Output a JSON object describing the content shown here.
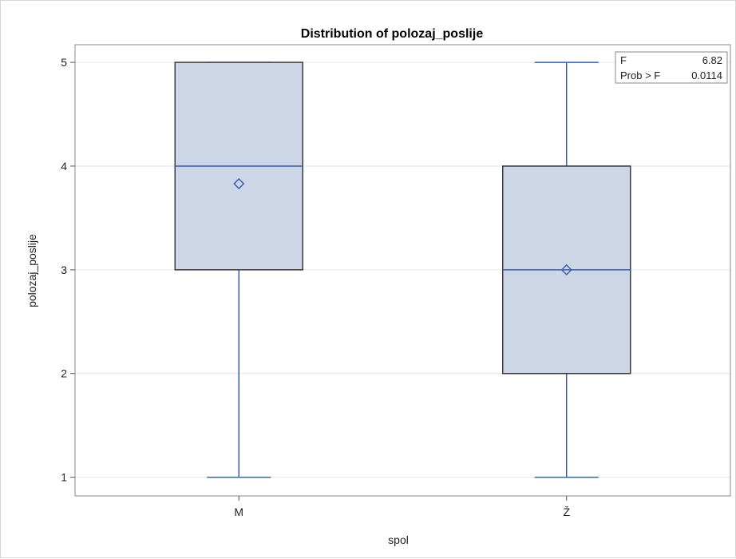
{
  "chart_data": {
    "type": "box",
    "title": "Distribution of polozaj_poslije",
    "xlabel": "spol",
    "ylabel": "polozaj_poslije",
    "categories": [
      "M",
      "Ž"
    ],
    "ylim": [
      0.82,
      5.17
    ],
    "yticks": [
      1,
      2,
      3,
      4,
      5
    ],
    "grid": true,
    "boxes": [
      {
        "category": "M",
        "min": 1,
        "q1": 3,
        "median": 4,
        "q3": 5,
        "max": 5,
        "mean": 3.83
      },
      {
        "category": "Ž",
        "min": 1,
        "q1": 2,
        "median": 3,
        "q3": 4,
        "max": 5,
        "mean": 3.0
      }
    ],
    "inset": {
      "rows": [
        {
          "label": "F",
          "value": "6.82"
        },
        {
          "label": "Prob > F",
          "value": "0.0114"
        }
      ],
      "placement": "top-right"
    },
    "colors": {
      "box_fill": "#cdd6e6",
      "box_edge": "#3a3a3a",
      "median": "#3a5fb0",
      "whisker": "#3a5fb0",
      "mean_marker": "#3a5fb0",
      "grid": "#e6e6e6"
    }
  }
}
